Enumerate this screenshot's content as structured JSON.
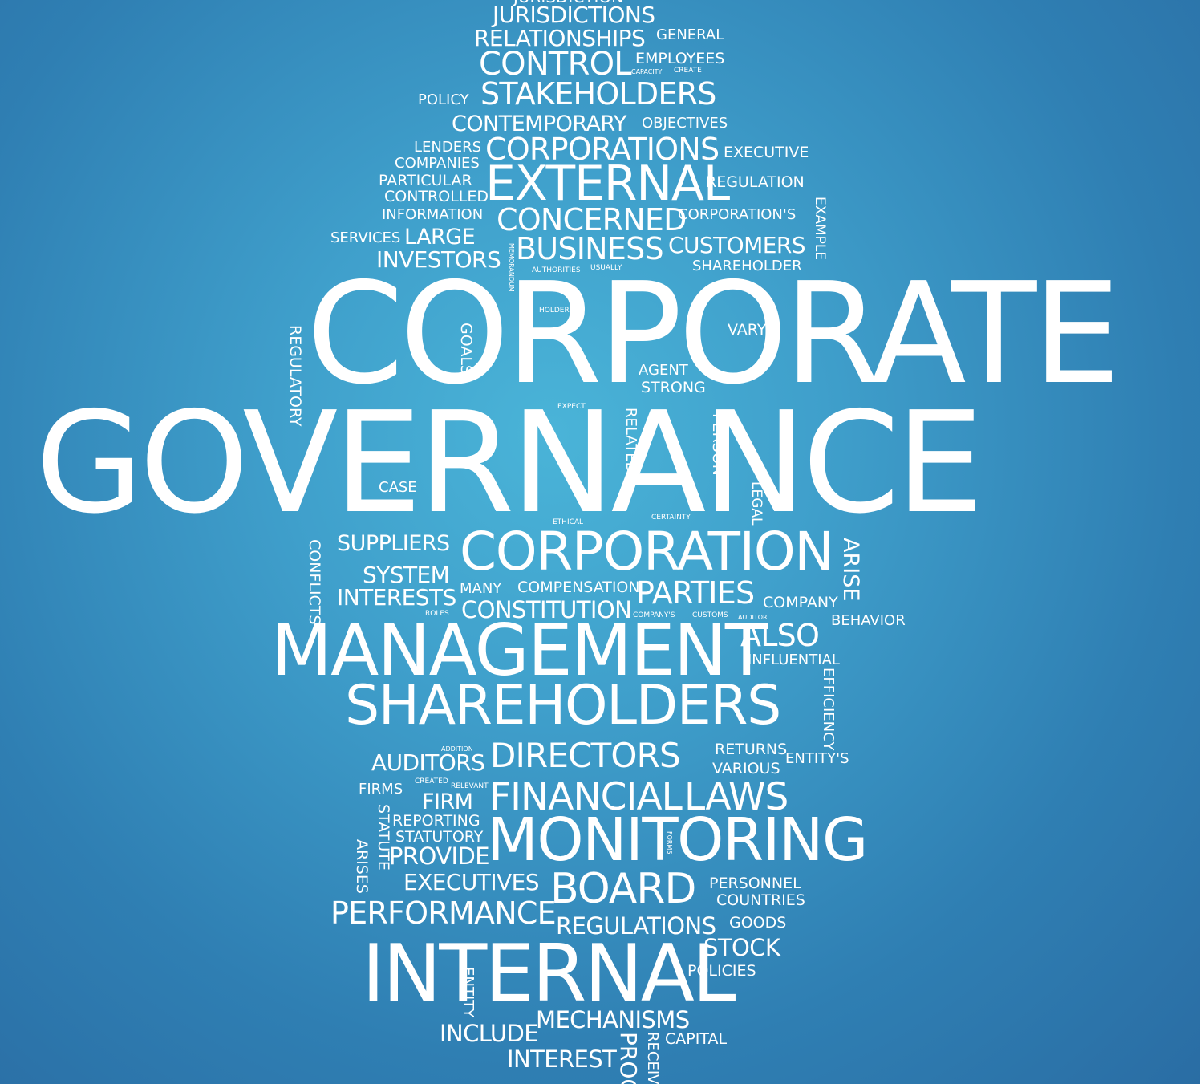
{
  "word_cloud": {
    "words": {
      "jurisdictions": "JURISDICTIONS",
      "relationships": "RELATIONSHIPS",
      "general": "GENERAL",
      "control": "CONTROL",
      "employees": "EMPLOYEES",
      "capacity": "CAPACITY",
      "create": "CREATE",
      "policy": "POLICY",
      "stakeholders": "STAKEHOLDERS",
      "contemporary": "CONTEMPORARY",
      "objectives": "OBJECTIVES",
      "lenders": "LENDERS",
      "corporations": "CORPORATIONS",
      "executive": "EXECUTIVE",
      "companies": "COMPANIES",
      "particular": "PARTICULAR",
      "external": "EXTERNAL",
      "regulation": "REGULATION",
      "controlled": "CONTROLLED",
      "information": "INFORMATION",
      "concerned": "CONCERNED",
      "corporations_s": "CORPORATION'S",
      "example": "EXAMPLE",
      "services": "SERVICES",
      "large": "LARGE",
      "business": "BUSINESS",
      "customers": "CUSTOMERS",
      "investors": "INVESTORS",
      "memorandum": "MEMORANDUM",
      "shareholder": "SHAREHOLDER",
      "authorities": "AUTHORITIES",
      "usually": "USUALLY",
      "corporate": "CORPORATE",
      "holders": "HOLDERS",
      "vary": "VARY",
      "regulatory": "REGULATORY",
      "goals": "GOALS",
      "agent": "AGENT",
      "strong": "STRONG",
      "governance": "GOVERNANCE",
      "expect": "EXPECT",
      "related": "RELATED",
      "person": "PERSON",
      "case": "CASE",
      "legal": "LEGAL",
      "ethical": "ETHICAL",
      "certainty": "CERTAINTY",
      "conflicts": "CONFLICTS",
      "suppliers": "SUPPLIERS",
      "corporation": "CORPORATION",
      "arise": "ARISE",
      "system": "SYSTEM",
      "many": "MANY",
      "compensation": "COMPENSATION",
      "interests": "INTERESTS",
      "parties": "PARTIES",
      "constitution": "CONSTITUTION",
      "company": "COMPANY",
      "roles": "ROLES",
      "companys": "COMPANY'S",
      "customs": "CUSTOMS",
      "auditor": "AUDITOR",
      "behavior": "BEHAVIOR",
      "management": "MANAGEMENT",
      "also": "ALSO",
      "influential": "INFLUENTIAL",
      "efficiency": "EFFICIENCY",
      "shareholders": "SHAREHOLDERS",
      "addition": "ADDITION",
      "auditors": "AUDITORS",
      "directors": "DIRECTORS",
      "returns": "RETURNS",
      "entitys": "ENTITY'S",
      "various": "VARIOUS",
      "firms": "FIRMS",
      "created": "CREATED",
      "relevant": "RELEVANT",
      "firm": "FIRM",
      "financial": "FINANCIAL",
      "laws": "LAWS",
      "statute": "STATUTE",
      "reporting": "REPORTING",
      "statutory": "STATUTORY",
      "monitoring": "MONITORING",
      "forms": "FORMS",
      "arises": "ARISES",
      "provide": "PROVIDE",
      "executives": "EXECUTIVES",
      "board": "BOARD",
      "personnel": "PERSONNEL",
      "countries": "COUNTRIES",
      "performance": "PERFORMANCE",
      "goods": "GOODS",
      "regulations": "REGULATIONS",
      "stock": "STOCK",
      "internal": "INTERNAL",
      "entity": "ENTITY",
      "policies": "POLICIES",
      "mechanisms": "MECHANISMS",
      "include": "INCLUDE",
      "proc": "PROC",
      "receiv": "RECEIV",
      "capital": "CAPITAL",
      "interest": "INTEREST"
    }
  }
}
